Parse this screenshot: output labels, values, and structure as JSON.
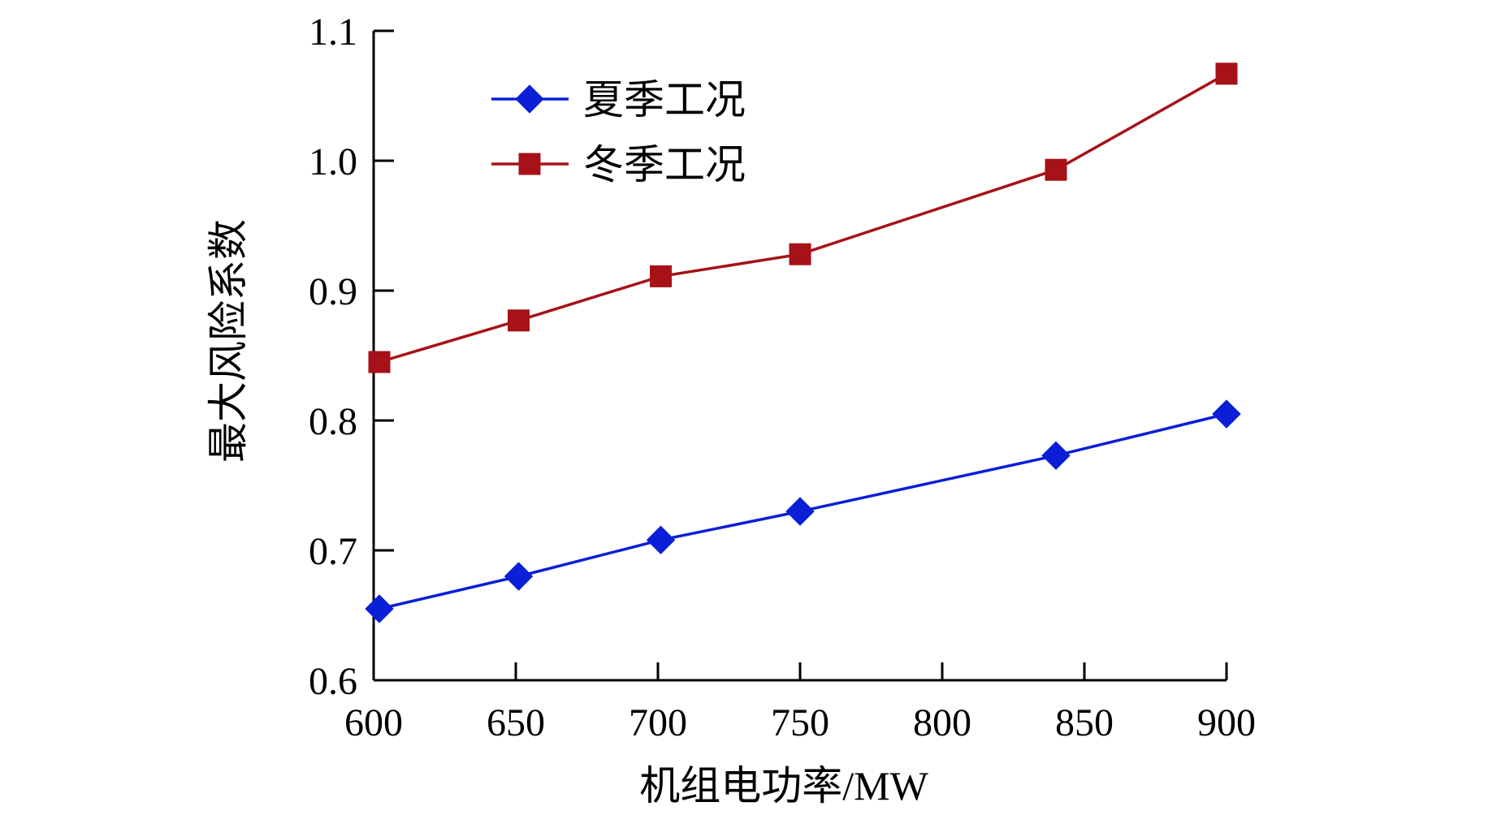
{
  "chart_data": {
    "type": "line",
    "xlabel": "机组电功率/MW",
    "ylabel": "最大风险系数",
    "xlim": [
      600,
      900
    ],
    "ylim": [
      0.6,
      1.1
    ],
    "x_ticks": [
      600,
      650,
      700,
      750,
      800,
      850,
      900
    ],
    "y_ticks": [
      0.6,
      0.7,
      0.8,
      0.9,
      1.0,
      1.1
    ],
    "x_tick_labels": [
      "600",
      "650",
      "700",
      "750",
      "800",
      "850",
      "900"
    ],
    "y_tick_labels": [
      "0.6",
      "0.7",
      "0.8",
      "0.9",
      "1.0",
      "1.1"
    ],
    "grid": false,
    "legend_position": "top-left",
    "series": [
      {
        "name": "夏季工况",
        "color": "#0a1fd6",
        "marker": "diamond",
        "x": [
          602,
          651,
          701,
          750,
          840,
          900
        ],
        "y": [
          0.655,
          0.68,
          0.708,
          0.73,
          0.773,
          0.805
        ]
      },
      {
        "name": "冬季工况",
        "color": "#a61217",
        "marker": "square",
        "x": [
          602,
          651,
          701,
          750,
          840,
          900
        ],
        "y": [
          0.845,
          0.877,
          0.911,
          0.928,
          0.993,
          1.067
        ]
      }
    ]
  }
}
